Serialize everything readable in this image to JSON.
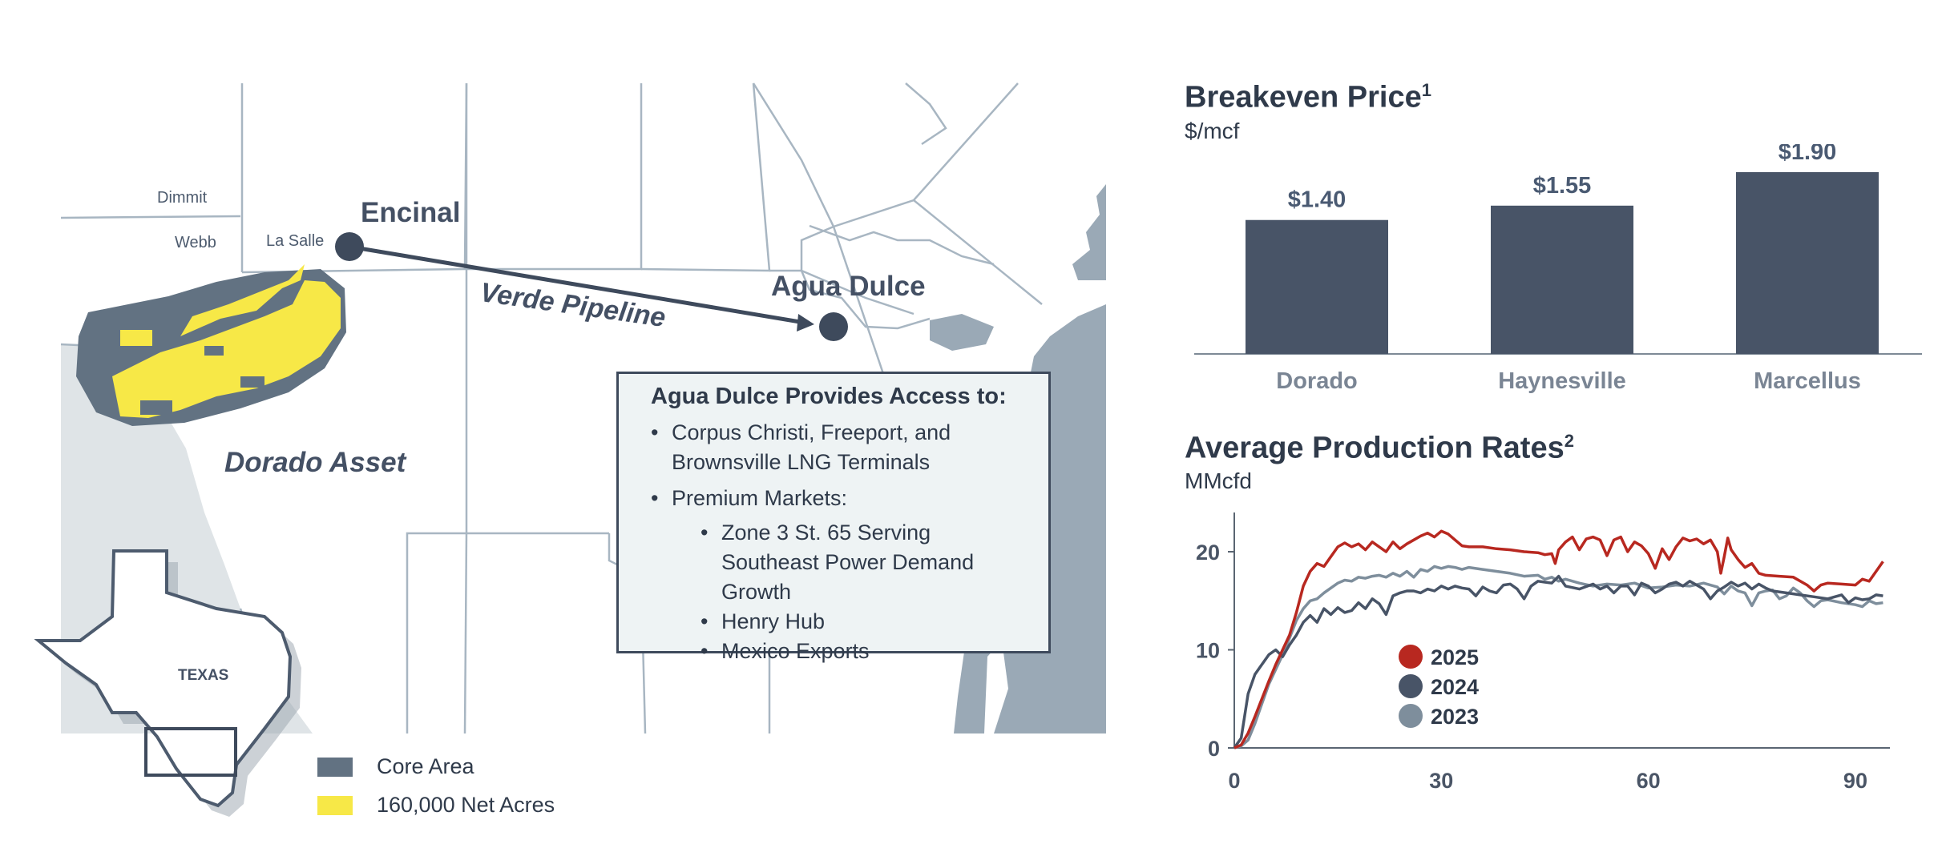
{
  "map": {
    "counties": [
      "Dimmit",
      "Webb",
      "La Salle"
    ],
    "towns": {
      "encinal": "Encinal",
      "agua_dulce": "Agua Dulce"
    },
    "pipeline_label": "Verde Pipeline",
    "asset_label": "Dorado Asset",
    "state_label": "TEXAS",
    "colors": {
      "core_area": "#627282",
      "net_acres": "#f7e847",
      "water": "#9aa9b6",
      "land_shaded": "#dfe4e7",
      "border": "#a8b6c2",
      "pipeline": "#3e4a5c",
      "point": "#3e4a5c"
    }
  },
  "info_box": {
    "title": "Agua Dulce Provides Access to:",
    "items": [
      {
        "text": "Corpus Christi, Freeport, and Brownsville LNG Terminals"
      },
      {
        "text": "Premium Markets:"
      }
    ],
    "sub_items": [
      "Zone 3 St. 65 Serving Southeast Power Demand Growth",
      "Henry Hub",
      "Mexico Exports"
    ]
  },
  "legend": [
    {
      "label": "Core Area",
      "color": "#627282"
    },
    {
      "label": "160,000 Net Acres",
      "color": "#f7e847"
    }
  ],
  "breakeven": {
    "title": "Breakeven Price",
    "title_sup": "1",
    "unit": "$/mcf"
  },
  "production": {
    "title": "Average Production Rates",
    "title_sup": "2",
    "unit": "MMcfd"
  },
  "chart_data": [
    {
      "type": "bar",
      "title": "Breakeven Price",
      "ylabel": "$/mcf",
      "categories": [
        "Dorado",
        "Haynesville",
        "Marcellus"
      ],
      "values": [
        1.4,
        1.55,
        1.9
      ],
      "data_labels": [
        "$1.40",
        "$1.55",
        "$1.90"
      ],
      "ylim": [
        0,
        1.9
      ],
      "color": "#485467",
      "grid": false
    },
    {
      "type": "line",
      "title": "Average Production Rates",
      "ylabel": "MMcfd",
      "x_ticks": [
        0,
        30,
        60,
        90
      ],
      "y_ticks": [
        0,
        10,
        20
      ],
      "xlim": [
        0,
        95
      ],
      "ylim": [
        0,
        24
      ],
      "grid": false,
      "legend_position": "center",
      "series": [
        {
          "name": "2025",
          "color": "#b82820",
          "points": [
            [
              0,
              0
            ],
            [
              1,
              0.3
            ],
            [
              2,
              1.5
            ],
            [
              3,
              3.2
            ],
            [
              4,
              5
            ],
            [
              5,
              6.8
            ],
            [
              6,
              8.5
            ],
            [
              7,
              10
            ],
            [
              8,
              11.5
            ],
            [
              9,
              13.8
            ],
            [
              10,
              16.5
            ],
            [
              11,
              18
            ],
            [
              12,
              18.8
            ],
            [
              13,
              18.5
            ],
            [
              14,
              19.5
            ],
            [
              15,
              20.5
            ],
            [
              16,
              20.9
            ],
            [
              17,
              20.5
            ],
            [
              18,
              20.8
            ],
            [
              19,
              20.2
            ],
            [
              20,
              21
            ],
            [
              21,
              20.5
            ],
            [
              22,
              20
            ],
            [
              23,
              21
            ],
            [
              24,
              20.3
            ],
            [
              25,
              20.8
            ],
            [
              26,
              21.2
            ],
            [
              27,
              21.6
            ],
            [
              28,
              21.9
            ],
            [
              29,
              21.5
            ],
            [
              30,
              22.1
            ],
            [
              31,
              21.8
            ],
            [
              32,
              21.2
            ],
            [
              33,
              20.6
            ],
            [
              34,
              20.5
            ],
            [
              36,
              20.5
            ],
            [
              38,
              20.3
            ],
            [
              40,
              20.2
            ],
            [
              42,
              20
            ],
            [
              44,
              19.9
            ],
            [
              45,
              19.7
            ],
            [
              46,
              19.8
            ],
            [
              46.5,
              18.8
            ],
            [
              47,
              20.2
            ],
            [
              48,
              21
            ],
            [
              49,
              21.5
            ],
            [
              50,
              20.2
            ],
            [
              51,
              21.3
            ],
            [
              52,
              21.5
            ],
            [
              53,
              21.2
            ],
            [
              54,
              19.6
            ],
            [
              55,
              21.2
            ],
            [
              56,
              21.5
            ],
            [
              57,
              20
            ],
            [
              58,
              21
            ],
            [
              59,
              20.6
            ],
            [
              60,
              19.8
            ],
            [
              61,
              18.3
            ],
            [
              62,
              20.3
            ],
            [
              63,
              19.2
            ],
            [
              64,
              20.5
            ],
            [
              65,
              21.4
            ],
            [
              66,
              21.1
            ],
            [
              67,
              21.3
            ],
            [
              68,
              20.8
            ],
            [
              69,
              21.2
            ],
            [
              70,
              20
            ],
            [
              70.5,
              17.8
            ],
            [
              71,
              19.5
            ],
            [
              71.5,
              21.4
            ],
            [
              72,
              20.2
            ],
            [
              73,
              19.2
            ],
            [
              74,
              18.4
            ],
            [
              75,
              18.8
            ],
            [
              76,
              17.8
            ],
            [
              77,
              17.6
            ],
            [
              79,
              17.5
            ],
            [
              81,
              17.4
            ],
            [
              83,
              16.6
            ],
            [
              84,
              16
            ],
            [
              85,
              16.6
            ],
            [
              86,
              16.8
            ],
            [
              88,
              16.7
            ],
            [
              90,
              16.6
            ],
            [
              91,
              17.2
            ],
            [
              92,
              17
            ],
            [
              93,
              18
            ],
            [
              94,
              19
            ]
          ]
        },
        {
          "name": "2024",
          "color": "#485467",
          "points": [
            [
              0,
              0
            ],
            [
              1,
              1
            ],
            [
              2,
              5.5
            ],
            [
              3,
              7.5
            ],
            [
              4,
              8.5
            ],
            [
              5,
              9.5
            ],
            [
              6,
              10
            ],
            [
              7,
              9.3
            ],
            [
              8,
              10.5
            ],
            [
              9,
              11.5
            ],
            [
              10,
              12.8
            ],
            [
              11,
              13.5
            ],
            [
              12,
              12.8
            ],
            [
              13,
              14.2
            ],
            [
              14,
              13.6
            ],
            [
              15,
              14.3
            ],
            [
              16,
              13.8
            ],
            [
              17,
              14
            ],
            [
              18,
              14.8
            ],
            [
              19,
              14.2
            ],
            [
              20,
              15.2
            ],
            [
              21,
              14.7
            ],
            [
              22,
              13.6
            ],
            [
              23,
              15.5
            ],
            [
              24,
              15.8
            ],
            [
              25,
              16
            ],
            [
              26,
              16
            ],
            [
              27,
              15.8
            ],
            [
              28,
              16.2
            ],
            [
              29,
              16
            ],
            [
              30,
              16.5
            ],
            [
              31,
              16.2
            ],
            [
              32,
              16.5
            ],
            [
              33,
              16.3
            ],
            [
              34,
              16.2
            ],
            [
              35,
              15.5
            ],
            [
              36,
              16.4
            ],
            [
              37,
              16
            ],
            [
              38,
              15.8
            ],
            [
              39,
              16.6
            ],
            [
              40,
              16.7
            ],
            [
              41,
              16.2
            ],
            [
              42,
              15.2
            ],
            [
              43,
              16.5
            ],
            [
              44,
              17
            ],
            [
              45,
              16.9
            ],
            [
              46,
              16.8
            ],
            [
              47,
              17.5
            ],
            [
              48,
              16.5
            ],
            [
              50,
              16.2
            ],
            [
              52,
              16.7
            ],
            [
              53,
              16.2
            ],
            [
              54,
              16.5
            ],
            [
              55,
              15.8
            ],
            [
              56,
              16.5
            ],
            [
              57,
              16.5
            ],
            [
              58,
              15.6
            ],
            [
              59,
              16.8
            ],
            [
              60,
              16.5
            ],
            [
              61,
              15.8
            ],
            [
              62,
              16.2
            ],
            [
              63,
              16.7
            ],
            [
              64,
              16.9
            ],
            [
              65,
              16.5
            ],
            [
              66,
              17
            ],
            [
              67,
              16.6
            ],
            [
              68,
              16.2
            ],
            [
              69,
              15.2
            ],
            [
              70,
              16
            ],
            [
              71,
              16.4
            ],
            [
              72,
              16.9
            ],
            [
              73,
              16.5
            ],
            [
              74,
              16.8
            ],
            [
              75,
              16.2
            ],
            [
              76,
              16.7
            ],
            [
              77,
              16.3
            ],
            [
              78,
              16
            ],
            [
              80,
              15.8
            ],
            [
              82,
              15.6
            ],
            [
              84,
              15.4
            ],
            [
              86,
              15.2
            ],
            [
              88,
              15.6
            ],
            [
              89,
              14.8
            ],
            [
              90,
              15.3
            ],
            [
              91,
              15.1
            ],
            [
              92,
              15.2
            ],
            [
              93,
              15.6
            ],
            [
              94,
              15.5
            ]
          ]
        },
        {
          "name": "2023",
          "color": "#7e8e9c",
          "points": [
            [
              0,
              0
            ],
            [
              1,
              0.2
            ],
            [
              2,
              0.8
            ],
            [
              3,
              2.5
            ],
            [
              4,
              4.5
            ],
            [
              5,
              6.5
            ],
            [
              6,
              8
            ],
            [
              7,
              9.5
            ],
            [
              8,
              11.2
            ],
            [
              9,
              13
            ],
            [
              10,
              14.2
            ],
            [
              11,
              15
            ],
            [
              12,
              15.2
            ],
            [
              13,
              15.8
            ],
            [
              14,
              16.3
            ],
            [
              15,
              16.8
            ],
            [
              16,
              17.1
            ],
            [
              17,
              17
            ],
            [
              18,
              17.4
            ],
            [
              19,
              17.3
            ],
            [
              20,
              17.5
            ],
            [
              21,
              17.6
            ],
            [
              22,
              17.4
            ],
            [
              23,
              17.8
            ],
            [
              24,
              17.5
            ],
            [
              25,
              18
            ],
            [
              26,
              17.4
            ],
            [
              27,
              18.2
            ],
            [
              28,
              18
            ],
            [
              29,
              18.5
            ],
            [
              30,
              18.3
            ],
            [
              31,
              18.5
            ],
            [
              32,
              18.4
            ],
            [
              33,
              18.2
            ],
            [
              34,
              18.4
            ],
            [
              36,
              18.2
            ],
            [
              38,
              18
            ],
            [
              40,
              17.8
            ],
            [
              42,
              17.5
            ],
            [
              44,
              17.6
            ],
            [
              45,
              17.2
            ],
            [
              46,
              17.4
            ],
            [
              47,
              17
            ],
            [
              48,
              17.2
            ],
            [
              50,
              16.8
            ],
            [
              52,
              16.5
            ],
            [
              54,
              16.7
            ],
            [
              56,
              16.6
            ],
            [
              58,
              16.8
            ],
            [
              60,
              16.3
            ],
            [
              62,
              16.4
            ],
            [
              64,
              16.6
            ],
            [
              66,
              16.5
            ],
            [
              68,
              16.8
            ],
            [
              70,
              16.4
            ],
            [
              71,
              15.7
            ],
            [
              72,
              16.5
            ],
            [
              73,
              16
            ],
            [
              74,
              15.8
            ],
            [
              75,
              14.5
            ],
            [
              76,
              15.8
            ],
            [
              77,
              16
            ],
            [
              78,
              16.1
            ],
            [
              79,
              15.2
            ],
            [
              80,
              15.5
            ],
            [
              81,
              16.3
            ],
            [
              82,
              15.8
            ],
            [
              83,
              15
            ],
            [
              84,
              14.4
            ],
            [
              85,
              15
            ],
            [
              86,
              15.1
            ],
            [
              88,
              14.8
            ],
            [
              90,
              14.6
            ],
            [
              91,
              14.4
            ],
            [
              92,
              15
            ],
            [
              93,
              14.7
            ],
            [
              94,
              14.8
            ]
          ]
        }
      ]
    }
  ]
}
